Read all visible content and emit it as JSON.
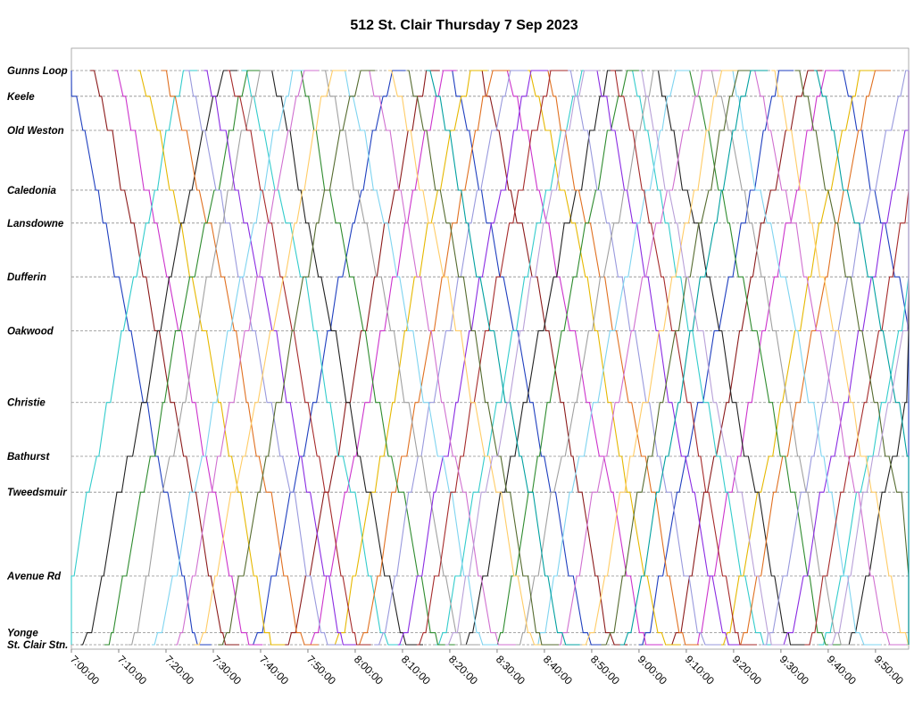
{
  "chart_data": {
    "type": "line",
    "title": "512 St. Clair Thursday 7 Sep 2023",
    "x_axis": {
      "min": "7:00:00",
      "max": "9:57:00",
      "ticks": [
        "7:00:00",
        "7:10:00",
        "7:20:00",
        "7:30:00",
        "7:40:00",
        "7:50:00",
        "8:00:00",
        "8:10:00",
        "8:20:00",
        "8:30:00",
        "8:40:00",
        "8:50:00",
        "9:00:00",
        "9:10:00",
        "9:20:00",
        "9:30:00",
        "9:40:00",
        "9:50:00"
      ]
    },
    "y_axis": {
      "stops": [
        "Gunns Loop",
        "Keele",
        "Old Weston",
        "Caledonia",
        "Lansdowne",
        "Dufferin",
        "Oakwood",
        "Christie",
        "Bathurst",
        "Tweedsmuir",
        "Avenue Rd",
        "Yonge",
        "St. Clair Stn."
      ],
      "stop_positions": [
        0.0,
        0.43,
        1.0,
        2.0,
        2.55,
        3.45,
        4.35,
        5.55,
        6.45,
        7.05,
        8.45,
        9.4,
        9.6
      ]
    },
    "grid": true,
    "legend": "none",
    "series": [
      {
        "color": "#1f3fbf",
        "trips": [
          {
            "start": "6:58:00",
            "dir": "E"
          },
          {
            "start": "7:38:00",
            "dir": "W"
          },
          {
            "start": "8:20:00",
            "dir": "E"
          },
          {
            "start": "9:00:00",
            "dir": "W"
          },
          {
            "start": "9:42:00",
            "dir": "E"
          }
        ]
      },
      {
        "color": "#8b1a1a",
        "trips": [
          {
            "start": "7:04:00",
            "dir": "E"
          },
          {
            "start": "7:45:00",
            "dir": "W"
          },
          {
            "start": "8:26:00",
            "dir": "E"
          },
          {
            "start": "9:06:00",
            "dir": "W"
          }
        ]
      },
      {
        "color": "#cc33cc",
        "trips": [
          {
            "start": "7:09:00",
            "dir": "E"
          },
          {
            "start": "7:50:00",
            "dir": "W"
          },
          {
            "start": "8:31:00",
            "dir": "E"
          },
          {
            "start": "9:12:00",
            "dir": "W"
          }
        ]
      },
      {
        "color": "#33cccc",
        "trips": [
          {
            "start": "6:56:00",
            "dir": "W"
          },
          {
            "start": "7:36:00",
            "dir": "E"
          },
          {
            "start": "8:17:00",
            "dir": "W"
          },
          {
            "start": "8:58:00",
            "dir": "E"
          },
          {
            "start": "9:38:00",
            "dir": "W"
          }
        ]
      },
      {
        "color": "#e6b800",
        "trips": [
          {
            "start": "7:14:00",
            "dir": "E"
          },
          {
            "start": "7:55:00",
            "dir": "W"
          },
          {
            "start": "8:36:00",
            "dir": "E"
          },
          {
            "start": "9:17:00",
            "dir": "W"
          }
        ]
      },
      {
        "color": "#222222",
        "trips": [
          {
            "start": "7:02:00",
            "dir": "W"
          },
          {
            "start": "7:42:00",
            "dir": "E"
          },
          {
            "start": "8:23:00",
            "dir": "W"
          },
          {
            "start": "9:03:00",
            "dir": "E"
          },
          {
            "start": "9:44:00",
            "dir": "W"
          }
        ]
      },
      {
        "color": "#e07020",
        "trips": [
          {
            "start": "7:19:00",
            "dir": "E"
          },
          {
            "start": "8:00:00",
            "dir": "W"
          },
          {
            "start": "8:40:00",
            "dir": "E"
          },
          {
            "start": "9:21:00",
            "dir": "W"
          }
        ]
      },
      {
        "color": "#2e8b2e",
        "trips": [
          {
            "start": "7:07:00",
            "dir": "W"
          },
          {
            "start": "7:48:00",
            "dir": "E"
          },
          {
            "start": "8:29:00",
            "dir": "W"
          },
          {
            "start": "9:10:00",
            "dir": "E"
          }
        ]
      },
      {
        "color": "#9999dd",
        "trips": [
          {
            "start": "7:24:00",
            "dir": "E"
          },
          {
            "start": "8:04:00",
            "dir": "W"
          },
          {
            "start": "8:45:00",
            "dir": "E"
          },
          {
            "start": "9:26:00",
            "dir": "W"
          }
        ]
      },
      {
        "color": "#a0a0a0",
        "trips": [
          {
            "start": "7:12:00",
            "dir": "W"
          },
          {
            "start": "7:53:00",
            "dir": "E"
          },
          {
            "start": "8:34:00",
            "dir": "W"
          },
          {
            "start": "9:15:00",
            "dir": "E"
          }
        ]
      },
      {
        "color": "#8a2be2",
        "trips": [
          {
            "start": "7:28:00",
            "dir": "E"
          },
          {
            "start": "8:09:00",
            "dir": "W"
          },
          {
            "start": "8:50:00",
            "dir": "E"
          },
          {
            "start": "9:30:00",
            "dir": "W"
          }
        ]
      },
      {
        "color": "#7fd4f0",
        "trips": [
          {
            "start": "7:17:00",
            "dir": "W"
          },
          {
            "start": "7:57:00",
            "dir": "E"
          },
          {
            "start": "8:38:00",
            "dir": "W"
          },
          {
            "start": "9:19:00",
            "dir": "E"
          }
        ]
      },
      {
        "color": "#a52a2a",
        "trips": [
          {
            "start": "7:33:00",
            "dir": "E"
          },
          {
            "start": "8:13:00",
            "dir": "W"
          },
          {
            "start": "8:54:00",
            "dir": "E"
          },
          {
            "start": "9:35:00",
            "dir": "W"
          }
        ]
      },
      {
        "color": "#d070d0",
        "trips": [
          {
            "start": "7:22:00",
            "dir": "W"
          },
          {
            "start": "8:02:00",
            "dir": "E"
          },
          {
            "start": "8:43:00",
            "dir": "W"
          },
          {
            "start": "9:24:00",
            "dir": "E"
          }
        ]
      },
      {
        "color": "#ffcc66",
        "trips": [
          {
            "start": "7:26:00",
            "dir": "W"
          },
          {
            "start": "8:07:00",
            "dir": "E"
          },
          {
            "start": "8:48:00",
            "dir": "W"
          },
          {
            "start": "9:28:00",
            "dir": "E"
          }
        ]
      },
      {
        "color": "#556b2f",
        "trips": [
          {
            "start": "7:31:00",
            "dir": "W"
          },
          {
            "start": "8:11:00",
            "dir": "E"
          },
          {
            "start": "8:52:00",
            "dir": "W"
          },
          {
            "start": "9:33:00",
            "dir": "E"
          }
        ]
      },
      {
        "color": "#00a0a0",
        "trips": [
          {
            "start": "8:15:00",
            "dir": "E"
          },
          {
            "start": "8:56:00",
            "dir": "W"
          },
          {
            "start": "9:37:00",
            "dir": "E"
          }
        ]
      },
      {
        "color": "#b8a0d8",
        "trips": [
          {
            "start": "8:19:00",
            "dir": "W"
          },
          {
            "start": "9:00:00",
            "dir": "E"
          },
          {
            "start": "9:40:00",
            "dir": "W"
          }
        ]
      }
    ]
  }
}
